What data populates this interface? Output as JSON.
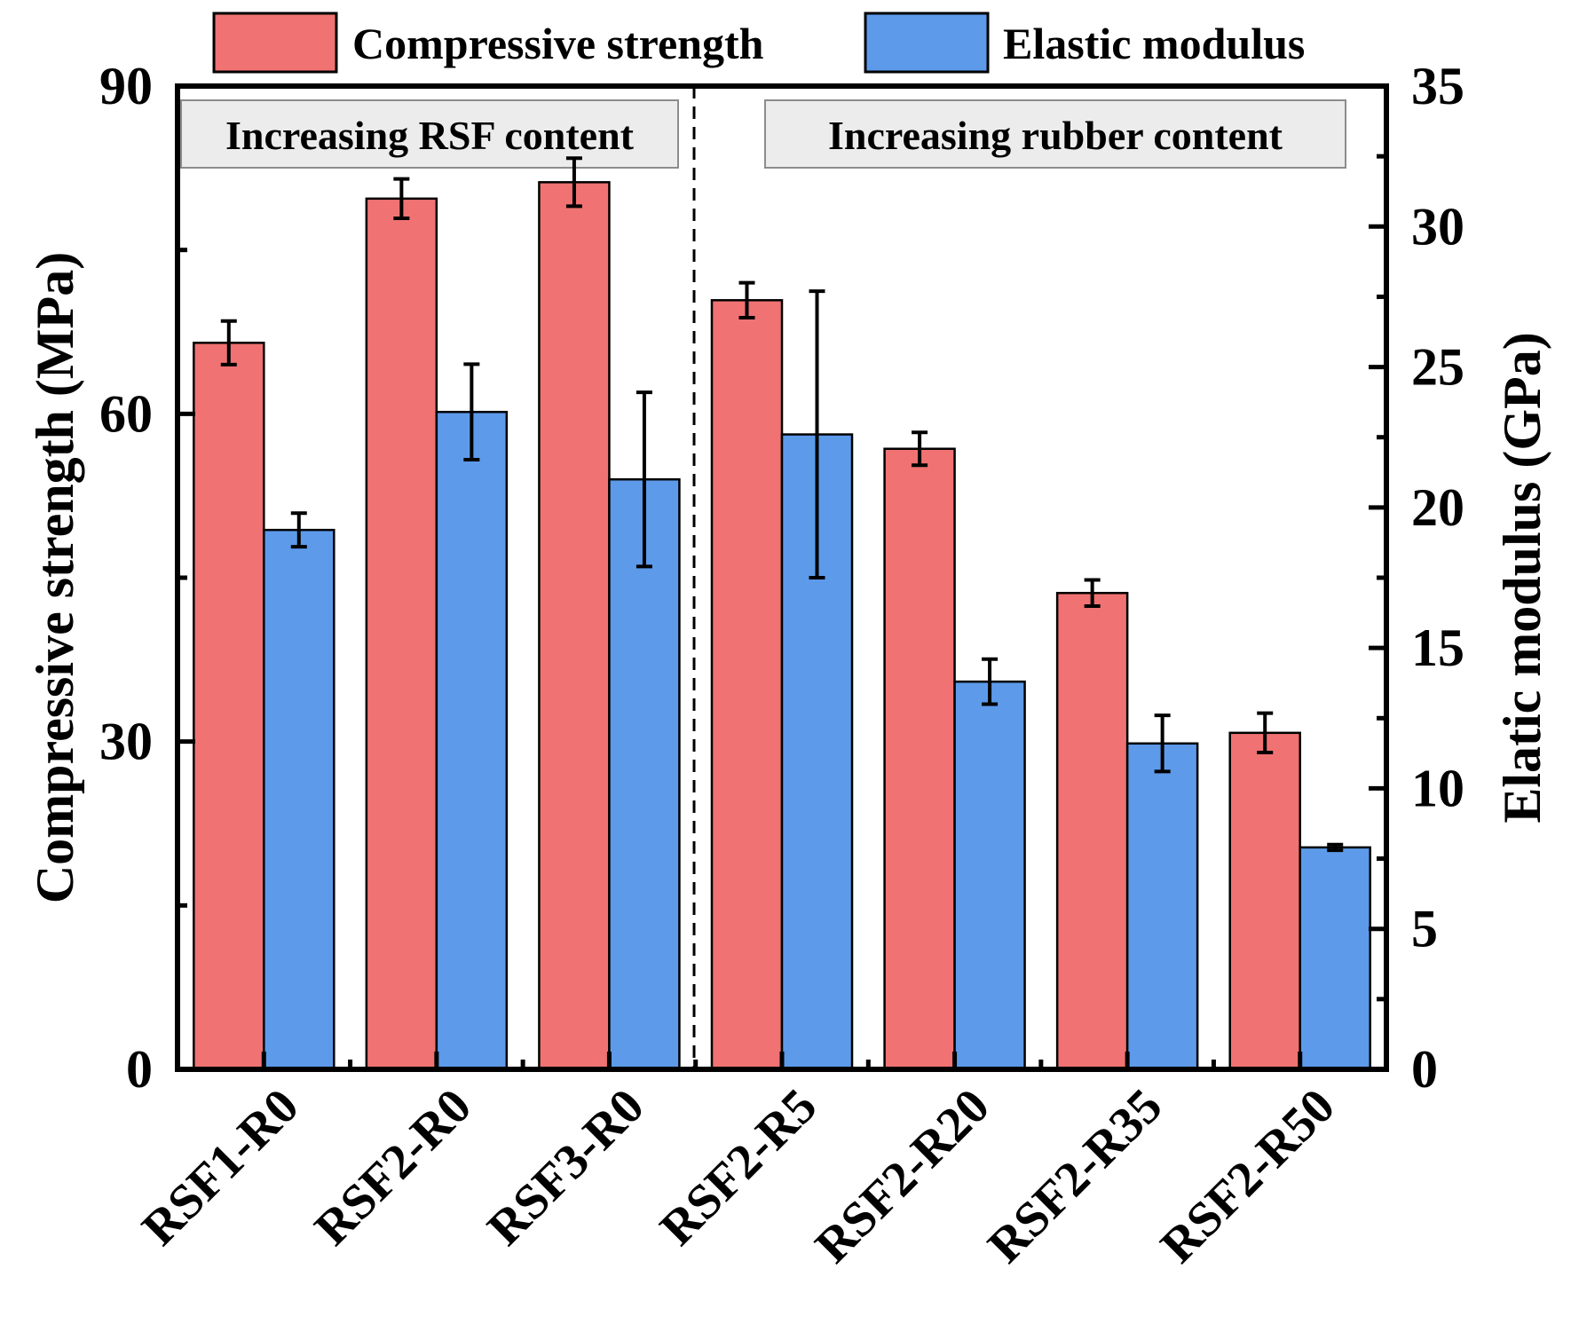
{
  "chart_data": {
    "type": "bar",
    "categories": [
      "RSF1-R0",
      "RSF2-R0",
      "RSF3-R0",
      "RSF2-R5",
      "RSF2-R20",
      "RSF2-R35",
      "RSF2-R50"
    ],
    "series": [
      {
        "name": "Compressive strength",
        "axis": "left",
        "color": "#f07272",
        "values": [
          66.5,
          79.7,
          81.2,
          70.4,
          56.8,
          43.6,
          30.8
        ],
        "errors": [
          2.0,
          1.8,
          2.2,
          1.6,
          1.5,
          1.2,
          1.8
        ]
      },
      {
        "name": "Elastic modulus",
        "axis": "right",
        "color": "#5d9aea",
        "values": [
          19.2,
          23.4,
          21.0,
          22.6,
          13.8,
          11.6,
          7.9
        ],
        "errors": [
          0.6,
          1.7,
          3.1,
          5.1,
          0.8,
          1.0,
          0.1
        ]
      }
    ],
    "ylabel_left": "Compressive strength (MPa)",
    "ylabel_right": "Elatic modulus (GPa)",
    "ylim_left": [
      0,
      90
    ],
    "ylim_right": [
      0,
      35
    ],
    "yticks_left": [
      "0",
      "30",
      "60",
      "90"
    ],
    "yticks_right": [
      "0",
      "5",
      "10",
      "15",
      "20",
      "25",
      "30",
      "35"
    ],
    "annotations": [
      "Increasing RSF content",
      "Increasing rubber content"
    ],
    "divider_after_category": "RSF3-R0",
    "legend_position": "top-center"
  }
}
